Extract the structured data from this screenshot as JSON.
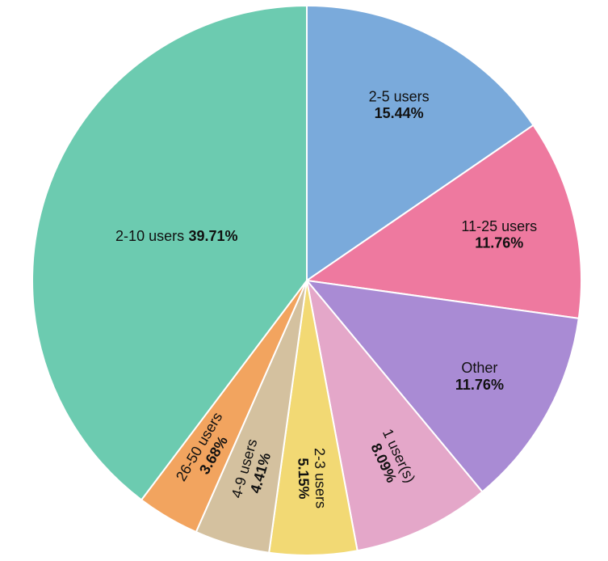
{
  "chart_data": {
    "type": "pie",
    "categories": [
      "2-5 users",
      "11-25 users",
      "Other",
      "1 user(s)",
      "2-3 users",
      "4-9 users",
      "26-50 users",
      "2-10 users"
    ],
    "values": [
      15.44,
      11.76,
      11.76,
      8.09,
      5.15,
      4.41,
      3.68,
      39.71
    ],
    "value_labels": [
      "15.44%",
      "11.76%",
      "11.76%",
      "8.09%",
      "5.15%",
      "4.41%",
      "3.68%",
      "39.71%"
    ],
    "colors": [
      "#7aaadb",
      "#ee799f",
      "#a98bd4",
      "#e4a7c9",
      "#f2d974",
      "#d4c19f",
      "#f2a45f",
      "#6ccbb0"
    ]
  }
}
